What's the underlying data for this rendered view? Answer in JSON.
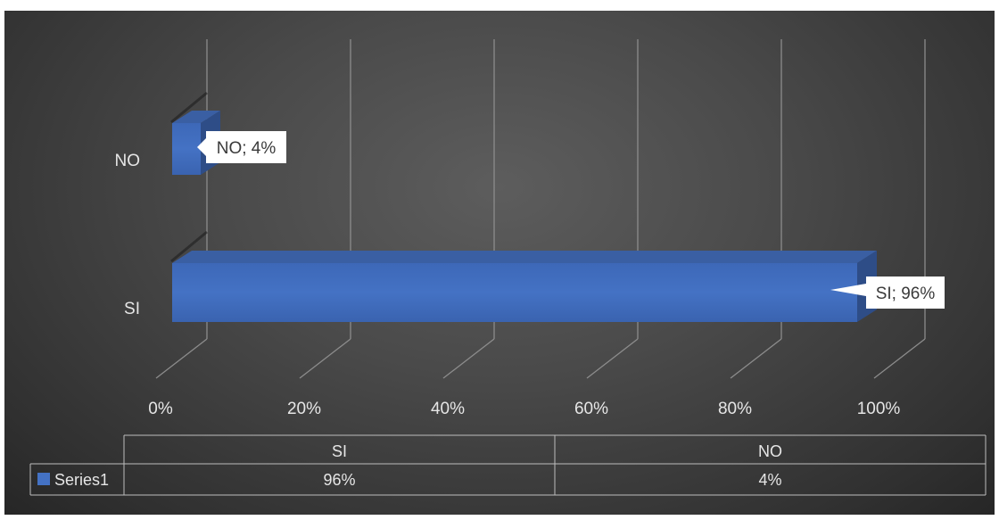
{
  "chart_data": {
    "type": "bar",
    "orientation": "horizontal",
    "style": "3d",
    "categories": [
      "SI",
      "NO"
    ],
    "series": [
      {
        "name": "Series1",
        "values": [
          96,
          4
        ],
        "color": "#4472c4"
      }
    ],
    "data_labels": [
      "SI; 96%",
      "NO; 4%"
    ],
    "x_ticks": [
      "0%",
      "20%",
      "40%",
      "60%",
      "80%",
      "100%"
    ],
    "xlim": [
      0,
      100
    ],
    "grid": true,
    "legend_position": "data-table",
    "data_table": {
      "header": [
        "SI",
        "NO"
      ],
      "rows": [
        {
          "series": "Series1",
          "cells": [
            "96%",
            "4%"
          ]
        }
      ]
    }
  },
  "colors": {
    "background_center": "#5d5d5d",
    "background_edge": "#262626",
    "gridline": "#8c8c8c",
    "bar_front": "#4472c4",
    "bar_top": "#3a5fa3",
    "bar_side": "#2e4d87",
    "text": "#e6e6e6"
  }
}
